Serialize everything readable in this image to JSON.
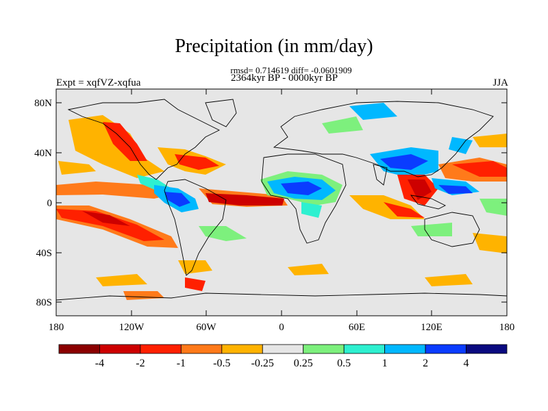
{
  "figure": {
    "title": "Precipitation (in mm/day)",
    "stats_line": "rmsd= 0.714619 diff= -0.0601909",
    "period_line": "2364kyr BP - 0000kyr BP",
    "experiment_label": "Expt = xqfVZ-xqfua",
    "season_label": "JJA"
  },
  "map": {
    "projection": "cylindrical equidistant",
    "lon_range": [
      -180,
      180
    ],
    "lat_range": [
      -90,
      90
    ],
    "lat_ticks": [
      "80N",
      "40N",
      "0",
      "40S",
      "80S"
    ],
    "lon_ticks": [
      "180",
      "120W",
      "60W",
      "0",
      "60E",
      "120E",
      "180"
    ],
    "ocean_land_background": "#e6e6e6",
    "coastline_color": "#000000"
  },
  "colorbar": {
    "boundary_labels": [
      "-4",
      "-2",
      "-1",
      "-0.5",
      "-0.25",
      "0.25",
      "0.5",
      "1",
      "2",
      "4"
    ],
    "colors": [
      "#8b0000",
      "#cd0000",
      "#ff2000",
      "#ff7a1a",
      "#ffb300",
      "#e6e6e6",
      "#7df07d",
      "#2ef0d0",
      "#00b8ff",
      "#0a3cff",
      "#0a0a80"
    ]
  }
}
